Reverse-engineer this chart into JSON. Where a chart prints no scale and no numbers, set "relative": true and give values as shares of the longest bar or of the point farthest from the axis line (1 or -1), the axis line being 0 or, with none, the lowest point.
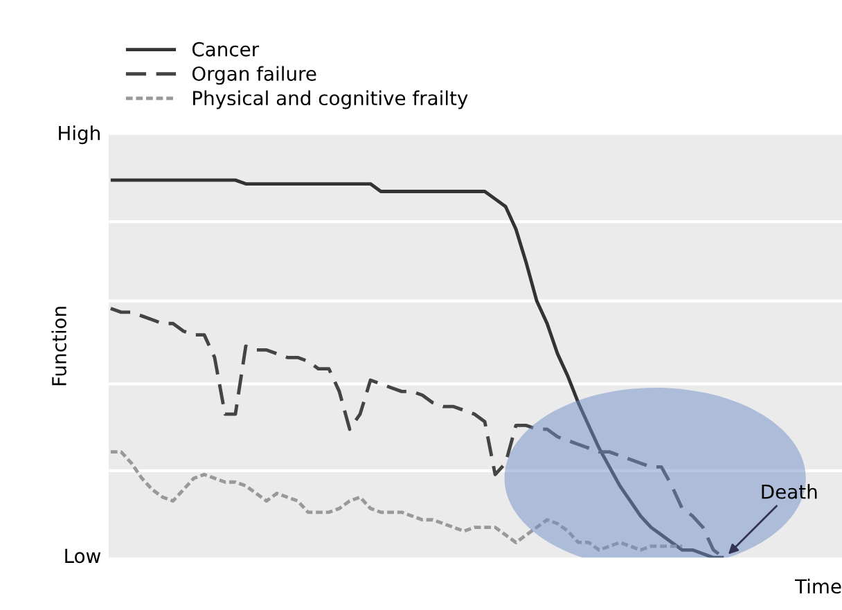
{
  "chart_data": {
    "type": "line",
    "ylabel": "Function",
    "xlabel": "Time",
    "categories": [
      null,
      null,
      null,
      null,
      null,
      null,
      null,
      null,
      null,
      null,
      null,
      null,
      null,
      null,
      null,
      null,
      null,
      null,
      null,
      null,
      null,
      null,
      null,
      null,
      null,
      null,
      null,
      null,
      null,
      null,
      null,
      null,
      null,
      null,
      null,
      null,
      null,
      null,
      null,
      null,
      null,
      null,
      null,
      null,
      null,
      null,
      null,
      null,
      null,
      null,
      null,
      null,
      null,
      null,
      null,
      null,
      null,
      null,
      null,
      null,
      null
    ],
    "relative": true,
    "ref_lines": [
      {
        "axis": "y",
        "value": 0.23,
        "color": "#ffffff"
      },
      {
        "axis": "y",
        "value": 0.46,
        "color": "#ffffff"
      },
      {
        "axis": "y",
        "value": 0.68,
        "color": "#ffffff"
      },
      {
        "axis": "y",
        "value": 0.89,
        "color": "#ffffff"
      }
    ],
    "legend": "top left",
    "tick_labels": false,
    "marker": "none",
    "series": [
      {
        "name": "Cancer",
        "color": "#333333",
        "line_style": "solid",
        "values": [
          1.0,
          1.0,
          1.0,
          1.0,
          1.0,
          1.0,
          1.0,
          1.0,
          1.0,
          1.0,
          1.0,
          1.0,
          1.0,
          0.99,
          0.99,
          0.99,
          0.99,
          0.99,
          0.99,
          0.99,
          0.99,
          0.99,
          0.99,
          0.99,
          0.99,
          0.99,
          0.97,
          0.97,
          0.97,
          0.97,
          0.97,
          0.97,
          0.97,
          0.97,
          0.97,
          0.97,
          0.97,
          0.95,
          0.93,
          0.87,
          0.78,
          0.68,
          0.62,
          0.54,
          0.48,
          0.41,
          0.35,
          0.29,
          0.24,
          0.19,
          0.15,
          0.11,
          0.08,
          0.06,
          0.04,
          0.02,
          0.02,
          0.01,
          0.0,
          0.0,
          null
        ]
      },
      {
        "name": "Organ failure",
        "color": "#444444",
        "line_style": "dashed",
        "values": [
          0.66,
          0.65,
          0.65,
          0.64,
          0.63,
          0.62,
          0.62,
          0.6,
          0.59,
          0.59,
          0.53,
          0.38,
          0.38,
          0.56,
          0.55,
          0.55,
          0.54,
          0.53,
          0.53,
          0.52,
          0.5,
          0.5,
          0.44,
          0.34,
          0.38,
          0.47,
          0.46,
          0.45,
          0.44,
          0.44,
          0.43,
          0.41,
          0.4,
          0.4,
          0.39,
          0.38,
          0.36,
          0.22,
          0.25,
          0.35,
          0.35,
          0.34,
          0.34,
          0.32,
          0.31,
          0.3,
          0.29,
          0.28,
          0.28,
          0.27,
          0.26,
          0.25,
          0.24,
          0.24,
          0.19,
          0.13,
          0.11,
          0.08,
          0.02,
          0.0,
          null
        ]
      },
      {
        "name": "Physical and cognitive frailty",
        "color": "#999999",
        "line_style": "dotted",
        "values": [
          0.28,
          0.28,
          0.25,
          0.21,
          0.18,
          0.16,
          0.15,
          0.18,
          0.21,
          0.22,
          0.21,
          0.2,
          0.2,
          0.19,
          0.17,
          0.15,
          0.17,
          0.16,
          0.15,
          0.12,
          0.12,
          0.12,
          0.13,
          0.15,
          0.16,
          0.13,
          0.12,
          0.12,
          0.12,
          0.11,
          0.1,
          0.1,
          0.09,
          0.08,
          0.07,
          0.08,
          0.08,
          0.08,
          0.06,
          0.04,
          0.06,
          0.08,
          0.1,
          0.09,
          0.07,
          0.04,
          0.04,
          0.02,
          0.03,
          0.04,
          0.03,
          0.02,
          0.03,
          0.03,
          0.03,
          0.03,
          null,
          null,
          null,
          null,
          null
        ]
      }
    ],
    "annotations": [
      "High",
      "Low",
      "Death"
    ]
  }
}
